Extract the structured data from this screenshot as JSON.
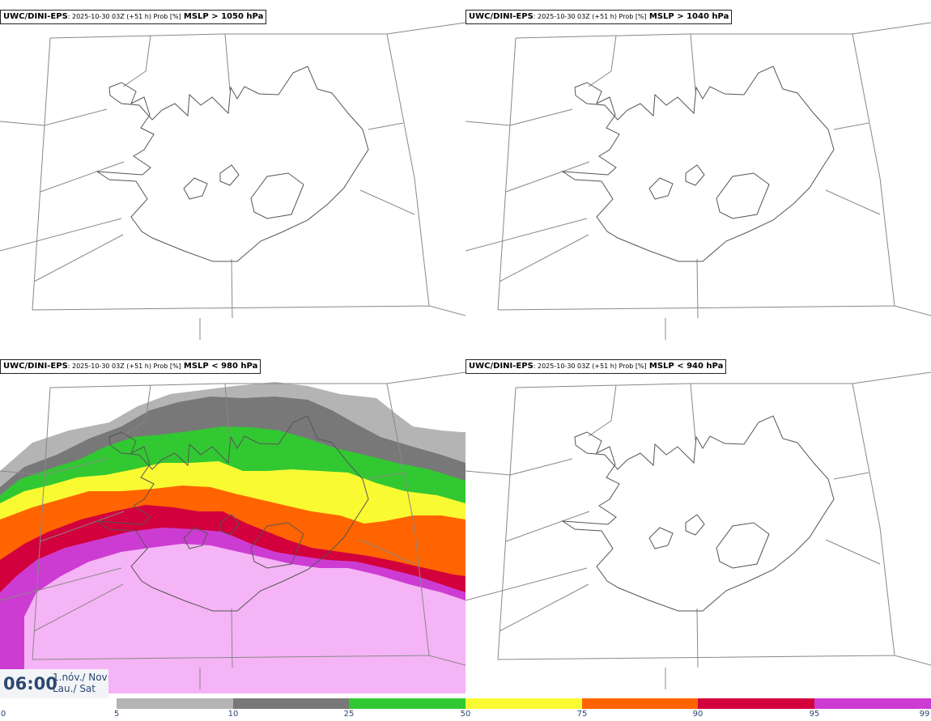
{
  "panels": [
    {
      "source": "UWC/DINI-EPS",
      "meta": ": 2025-10-30 03Z (+51 h) Prob [%]",
      "threshold": "MSLP > 1050 hPa"
    },
    {
      "source": "UWC/DINI-EPS",
      "meta": ": 2025-10-30 03Z (+51 h) Prob [%]",
      "threshold": "MSLP > 1040 hPa"
    },
    {
      "source": "UWC/DINI-EPS",
      "meta": ": 2025-10-30 03Z (+51 h) Prob [%]",
      "threshold": "MSLP < 980 hPa"
    },
    {
      "source": "UWC/DINI-EPS",
      "meta": ": 2025-10-30 03Z (+51 h) Prob [%]",
      "threshold": "MSLP < 940 hPa"
    }
  ],
  "valid_time": {
    "time": "06:00",
    "date_line1": "1.nóv./ Nov",
    "date_line2": "Lau./ Sat"
  },
  "legend": {
    "ticks": [
      "0",
      "5",
      "10",
      "25",
      "50",
      "75",
      "90",
      "95",
      "99"
    ],
    "colors": [
      "#ffffff",
      "#b4b4b4",
      "#787878",
      "#32c832",
      "#fafa32",
      "#ff6400",
      "#d2003c",
      "#cd3cd2",
      "#f5b4f5"
    ]
  }
}
